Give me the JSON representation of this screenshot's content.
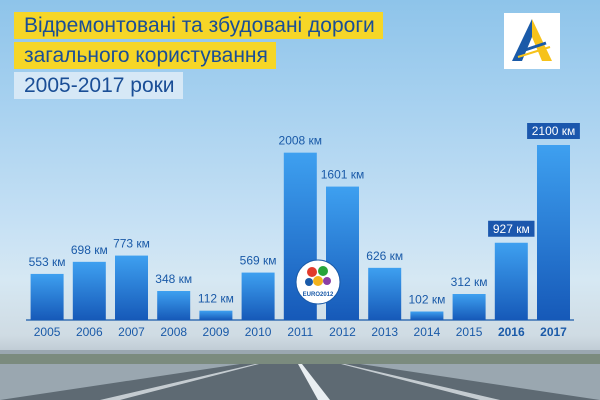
{
  "header": {
    "title_line1": "Відремонтовані та збудовані дороги",
    "title_line2": "загального користування",
    "subtitle": "2005-2017 роки"
  },
  "logo": {
    "icon": "road-agency-logo-icon"
  },
  "euro_badge": {
    "icon": "euro-2012-logo-icon",
    "text": "EURO2012"
  },
  "colors": {
    "bar_top": "#3ea0f0",
    "bar_bottom": "#1659b8",
    "title_bg": "#f6d627",
    "title_text": "#1a4e96",
    "highlight_box": "#1b57ad"
  },
  "chart_data": {
    "type": "bar",
    "title": "Відремонтовані та збудовані дороги загального користування 2005-2017 роки",
    "unit": "км",
    "categories": [
      "2005",
      "2006",
      "2007",
      "2008",
      "2009",
      "2010",
      "2011",
      "2012",
      "2013",
      "2014",
      "2015",
      "2016",
      "2017"
    ],
    "values": [
      553,
      698,
      773,
      348,
      112,
      569,
      2008,
      1601,
      626,
      102,
      312,
      927,
      2100
    ],
    "value_labels": [
      "553 км",
      "698 км",
      "773 км",
      "348 км",
      "112 км",
      "569 км",
      "2008 км",
      "1601 км",
      "626 км",
      "102 км",
      "312 км",
      "927 км",
      "2100 км"
    ],
    "highlighted_years": [
      "2016",
      "2017"
    ],
    "ylim": [
      0,
      2100
    ],
    "grid": false,
    "legend": "none"
  }
}
